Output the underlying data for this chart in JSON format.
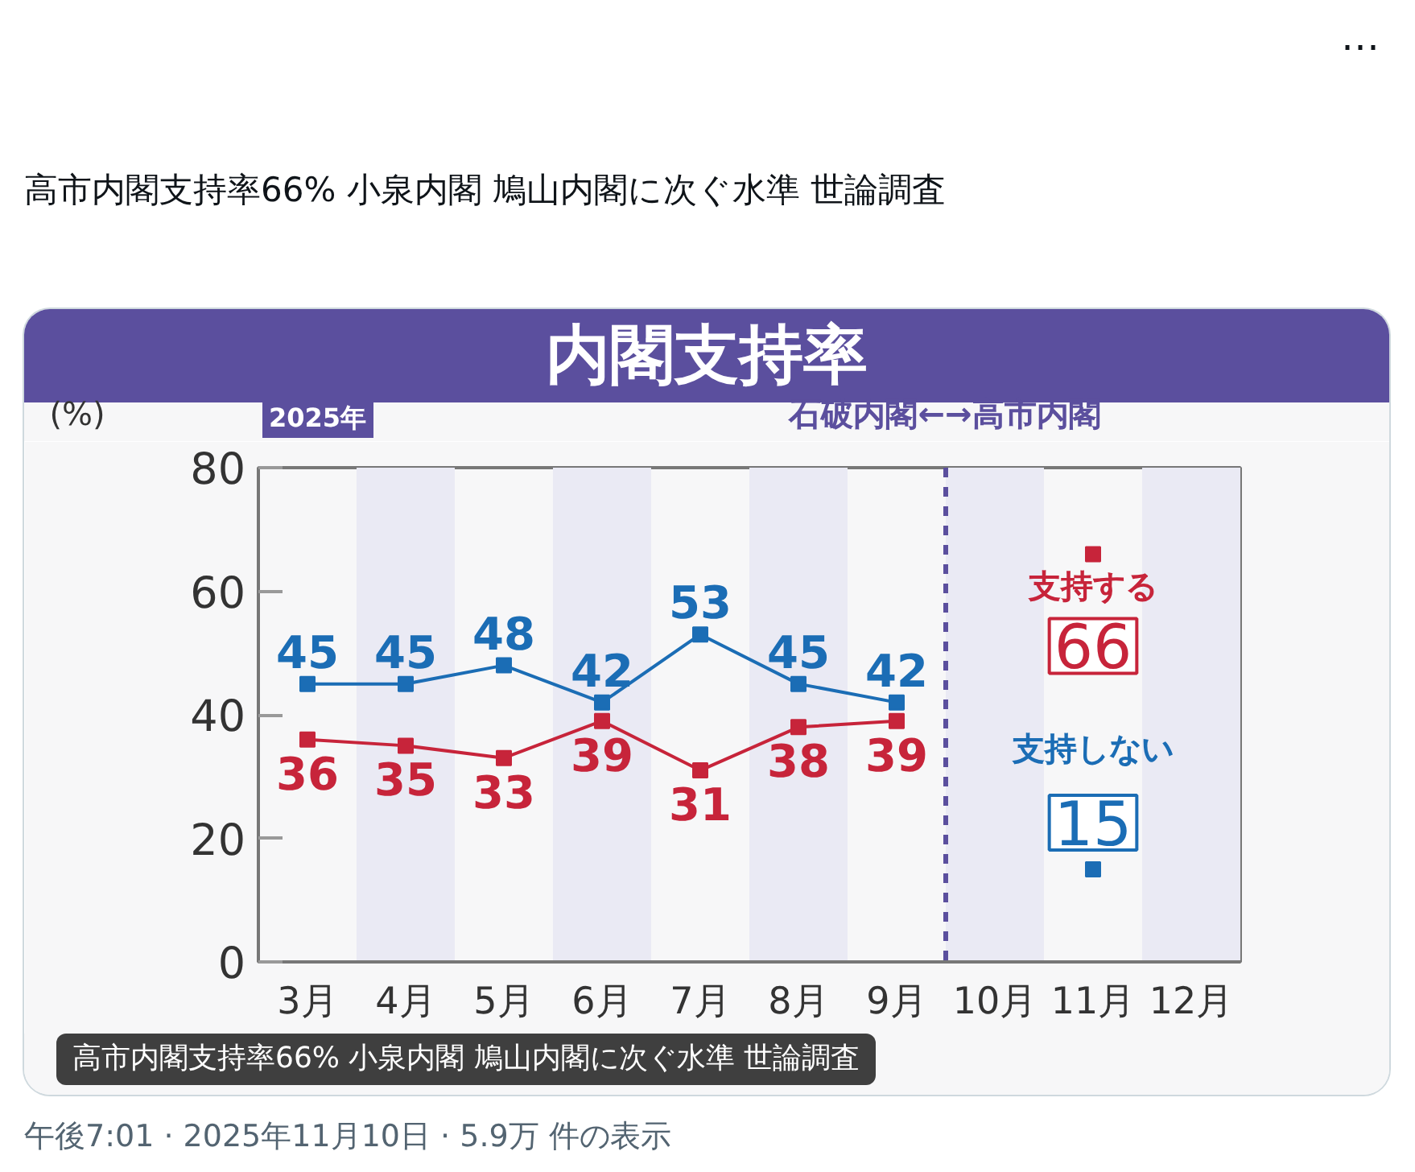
{
  "chart_data": {
    "type": "line",
    "title": "内閣支持率",
    "subtitle": "2025年",
    "ylabel": "(%)",
    "x": [
      3,
      4,
      5,
      6,
      7,
      8,
      9,
      10,
      11
    ],
    "xlim": [
      2.5,
      12.5
    ],
    "xticks": [
      {
        "value": 3,
        "label": "3月"
      },
      {
        "value": 4,
        "label": "4月"
      },
      {
        "value": 5,
        "label": "5月"
      },
      {
        "value": 6,
        "label": "6月"
      },
      {
        "value": 7,
        "label": "7月"
      },
      {
        "value": 8,
        "label": "8月"
      },
      {
        "value": 9,
        "label": "9月"
      },
      {
        "value": 10,
        "label": "10月"
      },
      {
        "value": 11,
        "label": "11月"
      },
      {
        "value": 12,
        "label": "12月"
      }
    ],
    "ylim": [
      0,
      80
    ],
    "yticks": [
      0,
      20,
      40,
      60,
      80
    ],
    "series": [
      {
        "name": "支持しない",
        "color": "#1b6db5",
        "values": [
          45,
          45,
          48,
          42,
          53,
          45,
          42,
          null,
          15
        ]
      },
      {
        "name": "支持する",
        "color": "#c7243a",
        "values": [
          36,
          35,
          33,
          39,
          31,
          38,
          39,
          null,
          66
        ]
      }
    ],
    "ref_lines": [
      {
        "axis": "x",
        "value": 9.5,
        "label": "石破内閣←→高市内閣",
        "color": "#5b4f9e",
        "line_style": "dashed"
      }
    ],
    "bands": [
      {
        "axis": "x",
        "from": 3.5,
        "to": 4.5,
        "color": "#eaeaf4"
      },
      {
        "axis": "x",
        "from": 5.5,
        "to": 6.5,
        "color": "#eaeaf4"
      },
      {
        "axis": "x",
        "from": 7.5,
        "to": 8.5,
        "color": "#eaeaf4"
      },
      {
        "axis": "x",
        "from": 9.5,
        "to": 10.5,
        "color": "#eaeaf4"
      },
      {
        "axis": "x",
        "from": 11.5,
        "to": 12.5,
        "color": "#eaeaf4"
      }
    ],
    "data_labels": true,
    "marker": "square",
    "line_style": "solid",
    "grid": false,
    "annotations": [
      "⋯",
      "高市内閣支持率66% 小泉内閣 鳩山内閣に次ぐ水準 世論調査",
      "高市内閣支持率66% 小泉内閣 鳩山内閣に次ぐ水準 世論調査",
      "午後7:01 · 2025年11月10日 · 5.9万 件の表示"
    ]
  }
}
